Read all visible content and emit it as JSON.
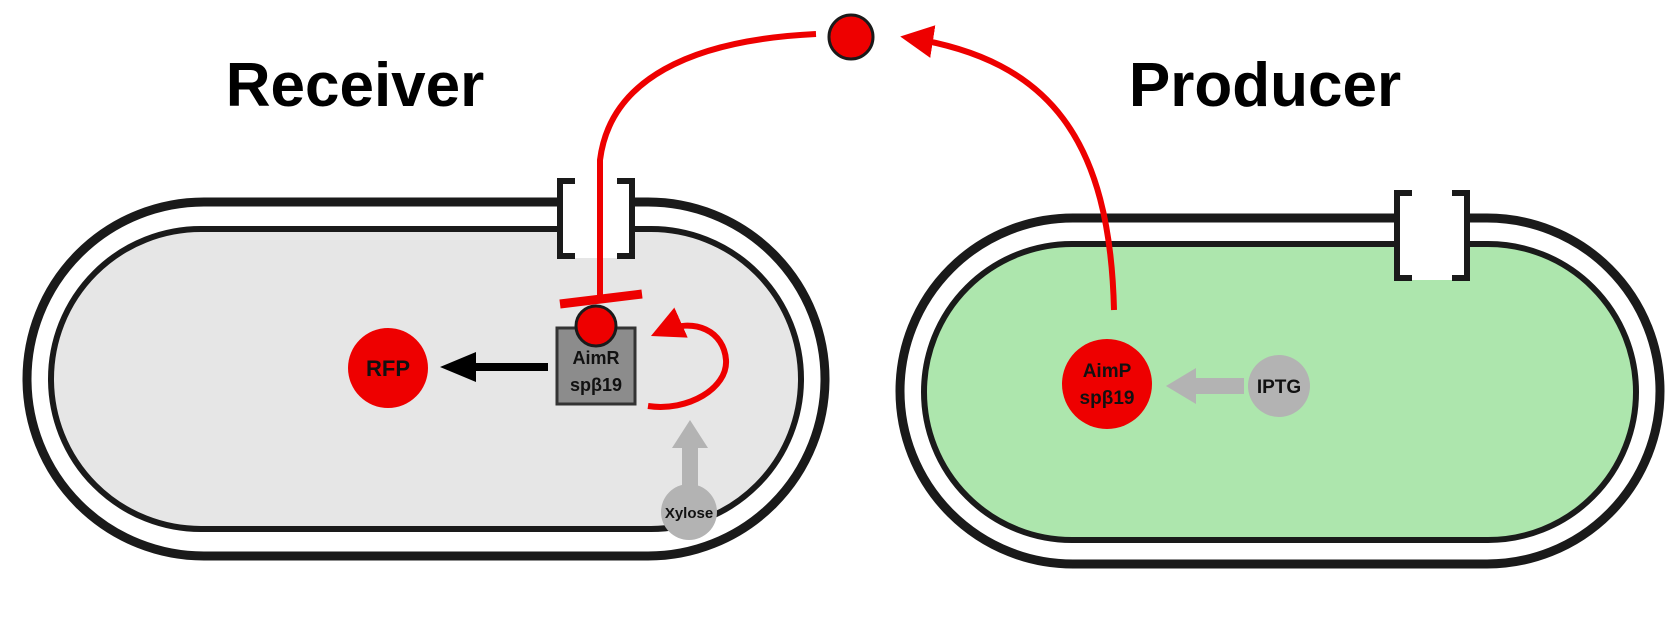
{
  "titles": {
    "receiver": "Receiver",
    "producer": "Producer"
  },
  "receiver": {
    "reporter_label": "RFP",
    "receptor_line1": "AimR",
    "receptor_line2": "spβ19",
    "inducer_label": "Xylose"
  },
  "producer": {
    "peptide_line1": "AimP",
    "peptide_line2": "spβ19",
    "inducer_label": "IPTG"
  },
  "colors": {
    "signal_red": "#ee0000",
    "receiver_cytoplasm": "#e6e6e6",
    "producer_cytoplasm": "#ade6ad",
    "receptor_box": "#8c8c8c",
    "inducer_gray": "#b3b3b3",
    "membrane": "#1a1a1a"
  },
  "icons": {
    "signal_molecule": "red-circle-peptide",
    "inhibition": "t-bar-inhibition",
    "activation": "arrowhead",
    "autoregulation": "circular-feedback-arrow"
  }
}
